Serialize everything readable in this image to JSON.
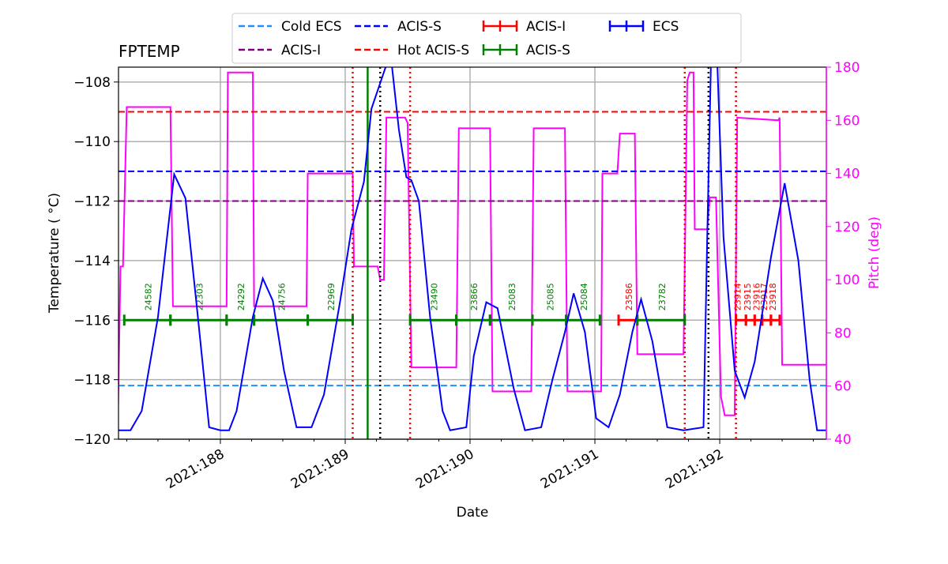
{
  "chart_data": {
    "type": "line",
    "title": "FPTEMP",
    "xlabel": "Date",
    "ylabel": "Temperature ($^\\circ$C)",
    "ylabel_display": "Temperature ( °C)",
    "y2label": "Pitch (deg)",
    "xlim": [
      187.184,
      192.854
    ],
    "ylim": [
      -120,
      -107.5
    ],
    "y2lim": [
      40,
      180
    ],
    "grid": true,
    "legend_placement": "top-center, above plot",
    "xticks": [
      {
        "v": 188,
        "label": "2021:188"
      },
      {
        "v": 189,
        "label": "2021:189"
      },
      {
        "v": 190,
        "label": "2021:190"
      },
      {
        "v": 191,
        "label": "2021:191"
      },
      {
        "v": 192,
        "label": "2021:192"
      }
    ],
    "yticks": [
      -120,
      -118,
      -116,
      -114,
      -112,
      -110,
      -108
    ],
    "ytick_labels": [
      "−120",
      "−118",
      "−116",
      "−114",
      "−112",
      "−110",
      "−108"
    ],
    "y2ticks": [
      40,
      60,
      80,
      100,
      120,
      140,
      160,
      180
    ],
    "y2tick_labels": [
      "40",
      "60",
      "80",
      "100",
      "120",
      "140",
      "160",
      "180"
    ],
    "colors": {
      "temp": "#0000ff",
      "pitch": "#ff00ff",
      "cold_ecs": "#1e90ff",
      "acis_i_limit": "#800080",
      "acis_s_limit": "#0000ff",
      "hot_acis_s": "#ff0000",
      "obs_acis_i": "#ff0000",
      "obs_acis_s": "#008000",
      "ecs": "#0000ff"
    },
    "hlines": [
      {
        "name": "Cold ECS",
        "value": -118.2,
        "color": "#1e90ff"
      },
      {
        "name": "ACIS-I",
        "value": -112,
        "color": "#800080"
      },
      {
        "name": "ACIS-S",
        "value": -111,
        "color": "#0000ff"
      },
      {
        "name": "Hot ACIS-S",
        "value": -109,
        "color": "#ff0000"
      }
    ],
    "vlines": [
      {
        "x": 189.06,
        "style": "red-dotted"
      },
      {
        "x": 189.52,
        "style": "red-dotted"
      },
      {
        "x": 191.72,
        "style": "red-dotted"
      },
      {
        "x": 192.13,
        "style": "red-dotted"
      },
      {
        "x": 189.28,
        "style": "black-dotted"
      },
      {
        "x": 191.91,
        "style": "black-dotted"
      },
      {
        "x": 189.18,
        "style": "green-solid"
      }
    ],
    "series": [
      {
        "name": "FPTEMP",
        "axis": "left",
        "color": "#0000ff",
        "x": [
          187.18,
          187.28,
          187.37,
          187.5,
          187.63,
          187.72,
          187.82,
          187.91,
          188.0,
          188.07,
          188.13,
          188.26,
          188.34,
          188.42,
          188.51,
          188.61,
          188.73,
          188.83,
          188.96,
          189.05,
          189.15,
          189.21,
          189.34,
          189.37,
          189.43,
          189.49,
          189.53,
          189.59,
          189.68,
          189.78,
          189.84,
          189.97,
          190.03,
          190.13,
          190.22,
          190.35,
          190.44,
          190.57,
          190.66,
          190.76,
          190.83,
          190.92,
          191.01,
          191.11,
          191.2,
          191.3,
          191.37,
          191.46,
          191.58,
          191.71,
          191.87,
          191.9,
          191.93,
          191.98,
          192.03,
          192.12,
          192.2,
          192.28,
          192.41,
          192.52,
          192.63,
          192.72,
          192.78,
          192.85
        ],
        "y": [
          -119.7,
          -119.7,
          -119.05,
          -115.9,
          -111.1,
          -111.9,
          -115.9,
          -119.6,
          -119.7,
          -119.7,
          -119.05,
          -115.9,
          -114.6,
          -115.35,
          -117.7,
          -119.6,
          -119.6,
          -118.5,
          -115.35,
          -112.95,
          -111.35,
          -108.9,
          -107.3,
          -107.3,
          -109.6,
          -111.2,
          -111.3,
          -112.0,
          -115.9,
          -119.05,
          -119.7,
          -119.6,
          -117.2,
          -115.4,
          -115.6,
          -118.3,
          -119.7,
          -119.6,
          -118.0,
          -116.4,
          -115.1,
          -116.4,
          -119.3,
          -119.6,
          -118.5,
          -116.4,
          -115.3,
          -116.7,
          -119.6,
          -119.7,
          -119.6,
          -113.2,
          -107.3,
          -107.3,
          -113.2,
          -117.7,
          -118.6,
          -117.4,
          -113.9,
          -111.4,
          -114.0,
          -118.0,
          -119.7,
          -119.7
        ]
      },
      {
        "name": "Pitch",
        "axis": "right",
        "color": "#ff00ff",
        "x": [
          187.18,
          187.2,
          187.22,
          187.25,
          187.6,
          187.62,
          188.05,
          188.06,
          188.26,
          188.27,
          188.69,
          188.7,
          189.06,
          189.07,
          189.26,
          189.28,
          189.31,
          189.33,
          189.48,
          189.5,
          189.53,
          189.89,
          189.91,
          190.16,
          190.18,
          190.49,
          190.51,
          190.76,
          190.78,
          191.05,
          191.06,
          191.18,
          191.2,
          191.32,
          191.34,
          191.71,
          191.74,
          191.76,
          191.79,
          191.8,
          191.9,
          191.92,
          191.97,
          192.01,
          192.04,
          192.12,
          192.14,
          192.47,
          192.48,
          192.5,
          192.85
        ],
        "y": [
          50,
          105,
          105,
          165,
          165,
          90,
          90,
          178,
          178,
          90,
          90,
          140,
          140,
          105,
          105,
          100,
          100,
          161,
          161,
          159,
          67,
          67,
          157,
          157,
          58,
          58,
          157,
          157,
          58,
          58,
          140,
          140,
          155,
          155,
          72,
          72,
          175,
          178,
          178,
          119,
          119,
          131,
          131,
          56,
          49,
          49,
          161,
          160,
          161,
          68,
          68
        ]
      }
    ],
    "obsids": {
      "y": -116,
      "items": [
        {
          "label": "24582",
          "start": 187.23,
          "end": 187.6,
          "instrument": "ACIS-S"
        },
        {
          "label": "22303",
          "start": 187.6,
          "end": 188.05,
          "instrument": "ACIS-S"
        },
        {
          "label": "24292",
          "start": 188.05,
          "end": 188.27,
          "instrument": "ACIS-S"
        },
        {
          "label": "24756",
          "start": 188.27,
          "end": 188.7,
          "instrument": "ACIS-S"
        },
        {
          "label": "22969",
          "start": 188.7,
          "end": 189.06,
          "instrument": "ACIS-S"
        },
        {
          "label": "23490",
          "start": 189.52,
          "end": 189.89,
          "instrument": "ACIS-S"
        },
        {
          "label": "23866",
          "start": 189.89,
          "end": 190.16,
          "instrument": "ACIS-S"
        },
        {
          "label": "25083",
          "start": 190.16,
          "end": 190.5,
          "instrument": "ACIS-S"
        },
        {
          "label": "25085",
          "start": 190.5,
          "end": 190.77,
          "instrument": "ACIS-S"
        },
        {
          "label": "25084",
          "start": 190.77,
          "end": 191.04,
          "instrument": "ACIS-S"
        },
        {
          "label": "23586",
          "start": 191.19,
          "end": 191.34,
          "instrument": "ACIS-I"
        },
        {
          "label": "23782",
          "start": 191.34,
          "end": 191.72,
          "instrument": "ACIS-S"
        },
        {
          "label": "23914",
          "start": 192.13,
          "end": 192.21,
          "instrument": "ACIS-I"
        },
        {
          "label": "23915",
          "start": 192.21,
          "end": 192.28,
          "instrument": "ACIS-I"
        },
        {
          "label": "23916",
          "start": 192.28,
          "end": 192.34,
          "instrument": "ACIS-I"
        },
        {
          "label": "23917",
          "start": 192.34,
          "end": 192.41,
          "instrument": "ACIS-I"
        },
        {
          "label": "23918",
          "start": 192.41,
          "end": 192.48,
          "instrument": "ACIS-I"
        }
      ]
    },
    "legend": [
      {
        "label": "Cold ECS",
        "style": "dashed",
        "color": "#1e90ff"
      },
      {
        "label": "ACIS-I",
        "style": "dashed",
        "color": "#800080"
      },
      {
        "label": "ACIS-S",
        "style": "dashed",
        "color": "#0000ff"
      },
      {
        "label": "Hot ACIS-S",
        "style": "dashed",
        "color": "#ff0000"
      },
      {
        "label": "ACIS-I",
        "style": "errorbar",
        "color": "#ff0000"
      },
      {
        "label": "ACIS-S",
        "style": "errorbar",
        "color": "#008000"
      },
      {
        "label": "ECS",
        "style": "errorbar",
        "color": "#0000ff"
      }
    ]
  }
}
